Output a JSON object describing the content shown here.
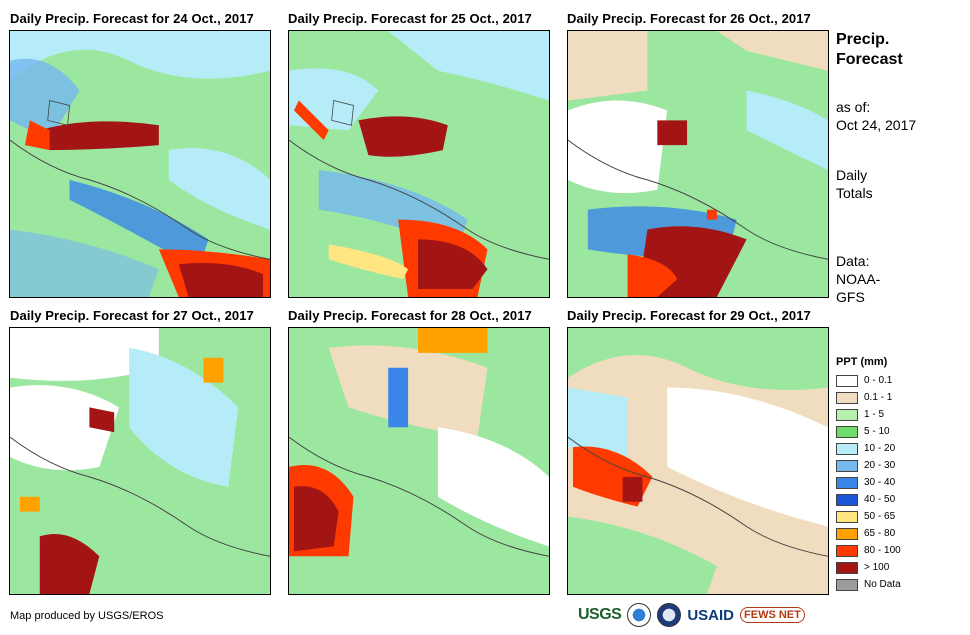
{
  "panels": [
    {
      "title": "Daily Precip. Forecast for 24 Oct., 2017"
    },
    {
      "title": "Daily Precip. Forecast for 25 Oct., 2017"
    },
    {
      "title": "Daily Precip. Forecast for 26 Oct., 2017"
    },
    {
      "title": "Daily Precip. Forecast for 27 Oct., 2017"
    },
    {
      "title": "Daily Precip. Forecast for 28 Oct., 2017"
    },
    {
      "title": "Daily Precip. Forecast for 29 Oct., 2017"
    }
  ],
  "side": {
    "title_line1": "Precip.",
    "title_line2": "Forecast",
    "asof_line1": "as of:",
    "asof_line2": "Oct 24, 2017",
    "totals_line1": "Daily",
    "totals_line2": "Totals",
    "data_line1": "Data:",
    "data_line2": "NOAA-",
    "data_line3": "GFS"
  },
  "legend": {
    "title": "PPT (mm)",
    "items": [
      {
        "label": "0 - 0.1",
        "color": "#ffffff"
      },
      {
        "label": "0.1 - 1",
        "color": "#f0dcbe"
      },
      {
        "label": "1 - 5",
        "color": "#b8efb0"
      },
      {
        "label": "5 - 10",
        "color": "#6fdc6a"
      },
      {
        "label": "10 - 20",
        "color": "#b5ecf7"
      },
      {
        "label": "20 - 30",
        "color": "#74b8f0"
      },
      {
        "label": "30 - 40",
        "color": "#3a86e8"
      },
      {
        "label": "40 - 50",
        "color": "#1c55d6"
      },
      {
        "label": "50 - 65",
        "color": "#ffe680"
      },
      {
        "label": "65 - 80",
        "color": "#ffa200"
      },
      {
        "label": "80 - 100",
        "color": "#ff3a00"
      },
      {
        "label": "> 100",
        "color": "#a31515"
      },
      {
        "label": "No Data",
        "color": "#9c9c9c"
      }
    ]
  },
  "credit": "Map produced by USGS/EROS",
  "logos": {
    "usgs": "USGS",
    "usaid": "USAID",
    "fews": "FEWS NET",
    "icons": [
      "usgs-logo-icon",
      "noaa-logo-icon",
      "dhs-seal-icon",
      "usaid-logo-icon",
      "fews-net-logo-icon"
    ]
  }
}
